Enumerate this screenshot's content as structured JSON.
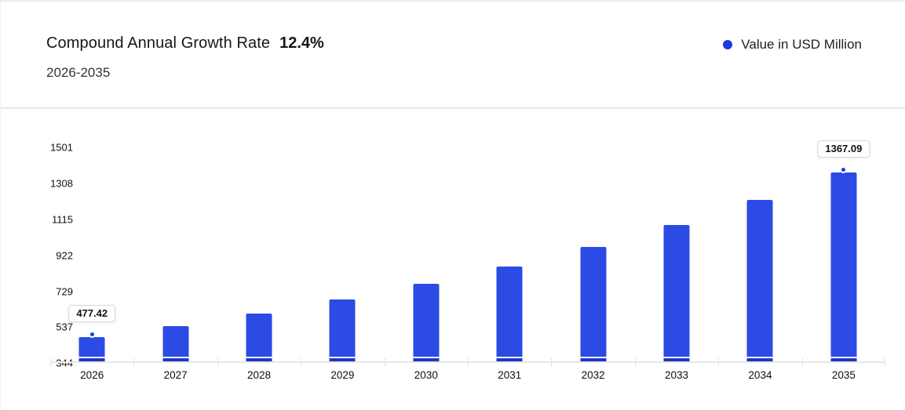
{
  "header": {
    "title": "Compound Annual Growth Rate",
    "cagr_value": "12.4%",
    "subtitle": "2026-2035",
    "legend": {
      "label": "Value in USD Million",
      "marker_color": "#1c38e0"
    }
  },
  "chart_data": {
    "type": "bar",
    "title": "Compound Annual Growth Rate 12.4% (2026-2035)",
    "categories": [
      "2026",
      "2027",
      "2028",
      "2029",
      "2030",
      "2031",
      "2032",
      "2033",
      "2034",
      "2035"
    ],
    "series": [
      {
        "name": "Value in USD Million",
        "values": [
          477.42,
          536.62,
          603.16,
          677.95,
          762.02,
          856.51,
          962.72,
          1082.1,
          1216.28,
          1367.09
        ]
      }
    ],
    "yticks": [
      344,
      537,
      729,
      922,
      1115,
      1308,
      1501
    ],
    "ylim": [
      344,
      1501
    ],
    "xlabel": "",
    "ylabel": "",
    "grid": false,
    "legend_position": "top-right",
    "bar_color": "#2c4be4",
    "bar_base_color": "#2038c6",
    "marker_color": "#1d3ae0",
    "data_labels": [
      {
        "index": 0,
        "text": "477.42"
      },
      {
        "index": 9,
        "text": "1367.09"
      }
    ]
  }
}
